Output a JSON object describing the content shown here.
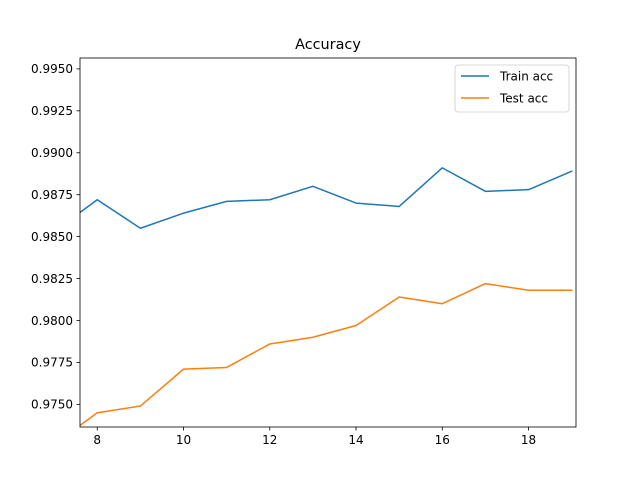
{
  "chart_data": {
    "type": "line",
    "title": "Accuracy",
    "xlabel": "",
    "ylabel": "",
    "xlim": [
      7.6,
      19.1
    ],
    "ylim": [
      0.97365,
      0.99565
    ],
    "xticks": [
      8,
      10,
      12,
      14,
      16,
      18
    ],
    "xtick_labels": [
      "8",
      "10",
      "12",
      "14",
      "16",
      "18"
    ],
    "yticks": [
      0.975,
      0.9775,
      0.98,
      0.9825,
      0.985,
      0.9875,
      0.99,
      0.9925,
      0.995
    ],
    "ytick_labels": [
      "0.9750",
      "0.9775",
      "0.9800",
      "0.9825",
      "0.9850",
      "0.9875",
      "0.9900",
      "0.9925",
      "0.9950"
    ],
    "grid": false,
    "legend_position": "upper right",
    "x": [
      7,
      8,
      9,
      10,
      11,
      12,
      13,
      14,
      15,
      16,
      17,
      18,
      19
    ],
    "series": [
      {
        "name": "Train acc",
        "color": "#1f77b4",
        "values": [
          0.9853,
          0.9872,
          0.9855,
          0.9864,
          0.9871,
          0.9872,
          0.988,
          0.987,
          0.9868,
          0.9891,
          0.9877,
          0.9878,
          0.9889
        ]
      },
      {
        "name": "Test acc",
        "color": "#ff7f0e",
        "values": [
          0.9726,
          0.9745,
          0.9749,
          0.9771,
          0.9772,
          0.9786,
          0.979,
          0.9797,
          0.9814,
          0.981,
          0.9822,
          0.9818,
          0.9818
        ]
      }
    ]
  }
}
